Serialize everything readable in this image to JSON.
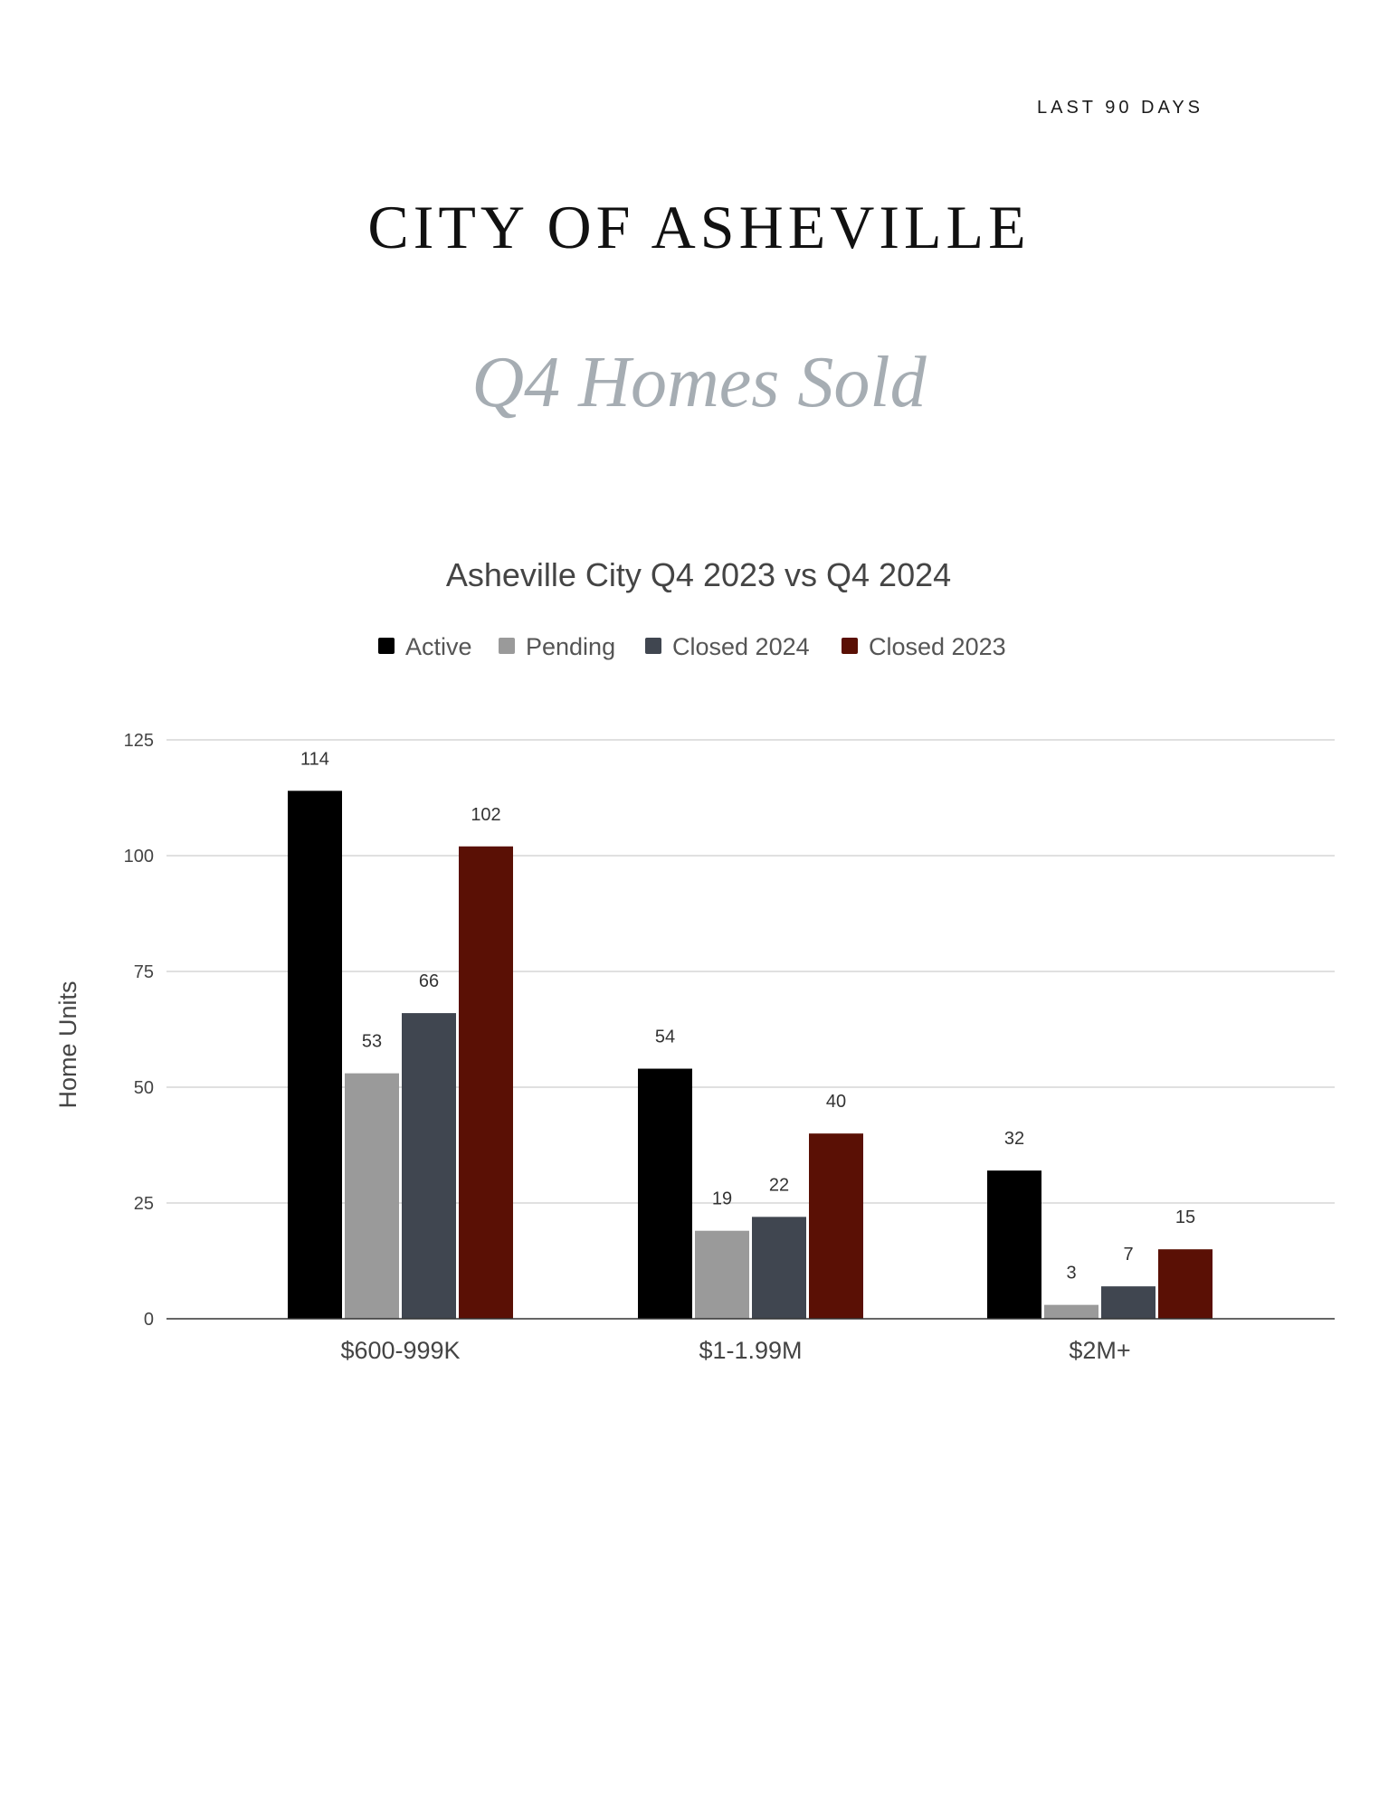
{
  "header": {
    "period_label": "LAST 90 DAYS",
    "title": "CITY OF ASHEVILLE",
    "subtitle": "Q4 Homes Sold"
  },
  "colors": {
    "Active": "#000000",
    "Pending": "#9a9a9a",
    "Closed 2024": "#404650",
    "Closed 2023": "#5a1005",
    "grid": "#d6d6d6",
    "text": "#444444"
  },
  "chart_data": {
    "type": "bar",
    "title": "Asheville City Q4 2023 vs Q4 2024",
    "xlabel": "",
    "ylabel": "Home Units",
    "ylim": [
      0,
      125
    ],
    "yticks": [
      0,
      25,
      50,
      75,
      100,
      125
    ],
    "grid": true,
    "legend_position": "top",
    "categories": [
      "$600-999K",
      "$1-1.99M",
      "$2M+"
    ],
    "series": [
      {
        "name": "Active",
        "values": [
          114,
          54,
          32
        ]
      },
      {
        "name": "Pending",
        "values": [
          53,
          19,
          3
        ]
      },
      {
        "name": "Closed 2024",
        "values": [
          66,
          22,
          7
        ]
      },
      {
        "name": "Closed 2023",
        "values": [
          102,
          40,
          15
        ]
      }
    ]
  }
}
